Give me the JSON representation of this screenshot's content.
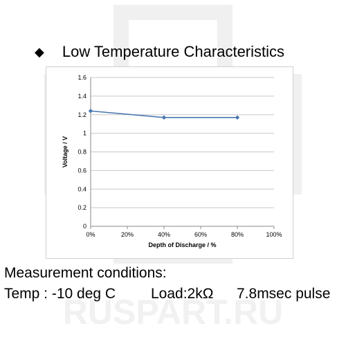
{
  "heading": {
    "bullet": "◆",
    "title": "Low Temperature Characteristics"
  },
  "watermark": {
    "text": "RUSPART.RU",
    "color": "#f1f1f1"
  },
  "conditions": {
    "label": "Measurement conditions:",
    "temp": "Temp : -10 deg C",
    "load": "Load:2kΩ",
    "pulse": "7.8msec pulse"
  },
  "chart_data": {
    "type": "line",
    "title": "",
    "xlabel": "Depth of Discharge  /  %",
    "ylabel": "Voltage  /  V",
    "x": [
      0,
      40,
      80
    ],
    "series": [
      {
        "values": [
          1.24,
          1.17,
          1.17
        ]
      }
    ],
    "xlim": [
      0,
      100
    ],
    "ylim": [
      0,
      1.6
    ],
    "x_ticks": [
      0,
      20,
      40,
      60,
      80,
      100
    ],
    "x_tick_labels": [
      "0%",
      "20%",
      "40%",
      "60%",
      "80%",
      "100%"
    ],
    "y_ticks": [
      0,
      0.2,
      0.4,
      0.6,
      0.8,
      1,
      1.2,
      1.4,
      1.6
    ],
    "y_tick_labels": [
      "0",
      "0.2",
      "0.4",
      "0.6",
      "0.8",
      "1",
      "1.2",
      "1.4",
      "1.6"
    ],
    "grid": "horizontal",
    "legend": "none",
    "colors": {
      "line": "#4a76b0",
      "grid": "#c8c8c8",
      "axis": "#888888"
    }
  }
}
